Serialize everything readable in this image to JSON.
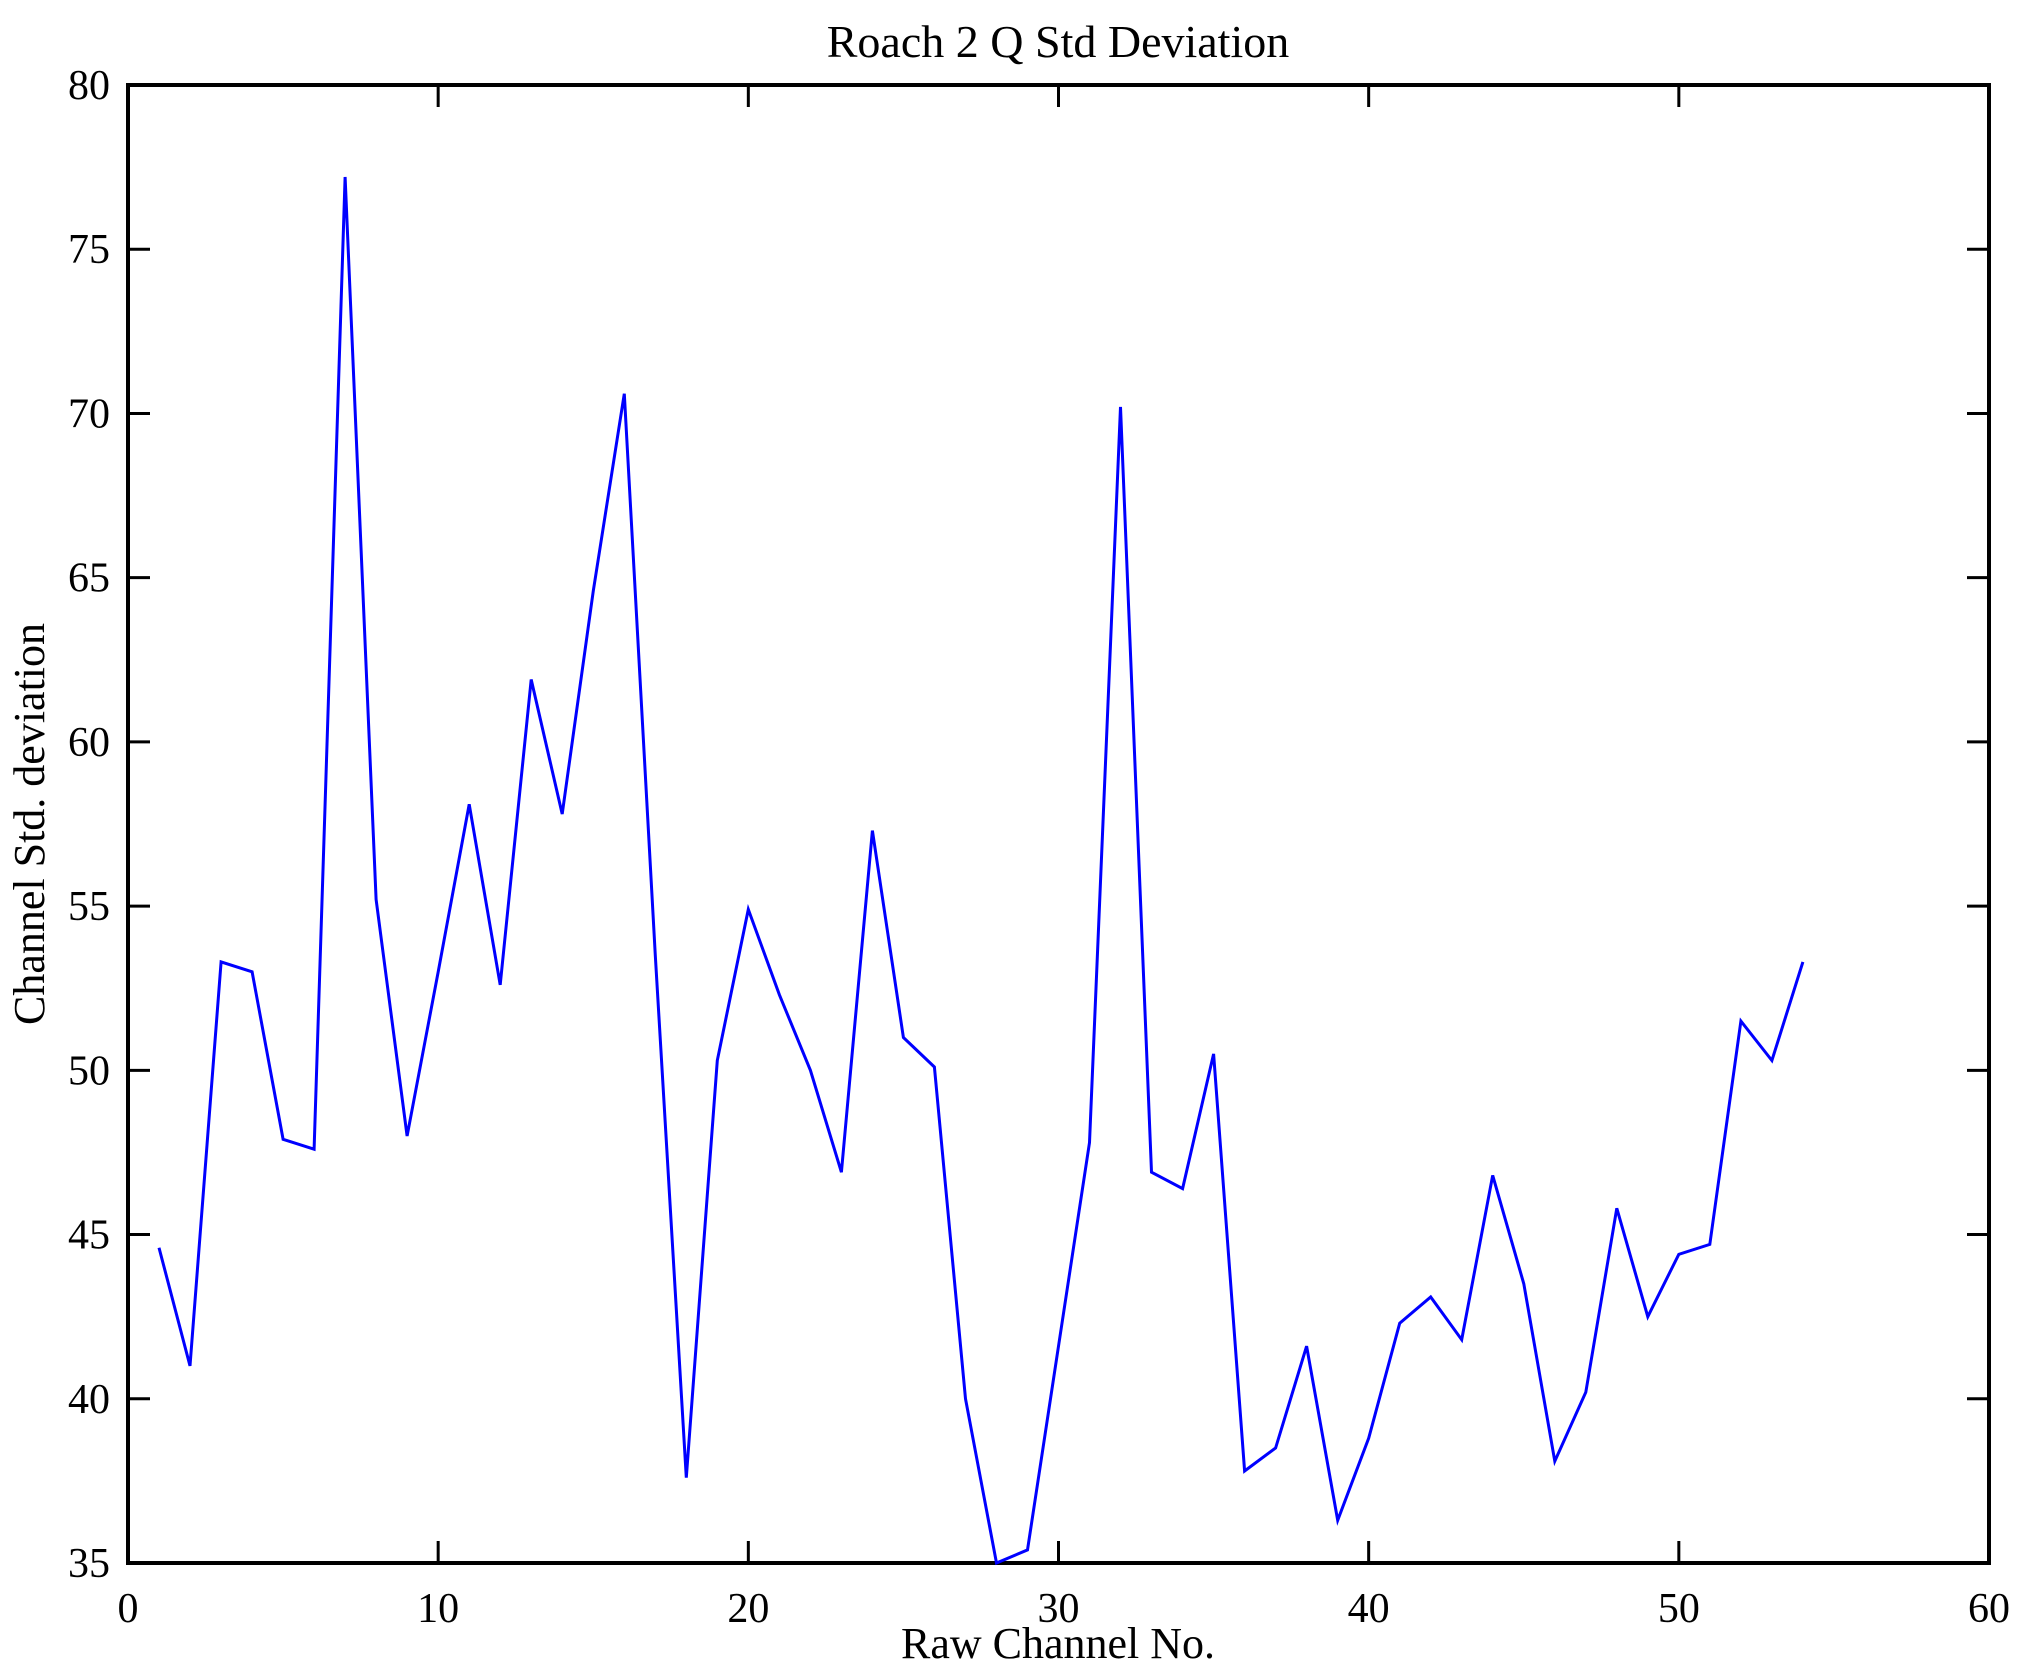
{
  "chart_data": {
    "type": "line",
    "title": "Roach 2 Q Std Deviation",
    "xlabel": "Raw Channel No.",
    "ylabel": "Channel Std. deviation",
    "xlim": [
      0,
      60
    ],
    "ylim": [
      35,
      80
    ],
    "x_ticks": [
      0,
      10,
      20,
      30,
      40,
      50,
      60
    ],
    "y_ticks": [
      35,
      40,
      45,
      50,
      55,
      60,
      65,
      70,
      75,
      80
    ],
    "grid": false,
    "legend": "none",
    "line_color": "#0000FF",
    "axis_color": "#000000",
    "x": [
      1,
      2,
      3,
      4,
      5,
      6,
      7,
      8,
      9,
      10,
      11,
      12,
      13,
      14,
      15,
      16,
      17,
      18,
      19,
      20,
      21,
      22,
      23,
      24,
      25,
      26,
      27,
      28,
      29,
      30,
      31,
      32,
      33,
      34,
      35,
      36,
      37,
      38,
      39,
      40,
      41,
      42,
      43,
      44,
      45,
      46,
      47,
      48,
      49,
      50,
      51,
      52,
      53,
      54
    ],
    "values": [
      44.6,
      41.0,
      53.3,
      53.0,
      47.9,
      47.6,
      77.2,
      55.2,
      48.0,
      53.0,
      58.1,
      52.6,
      61.9,
      57.8,
      64.6,
      70.6,
      53.5,
      37.6,
      50.3,
      54.9,
      52.3,
      50.0,
      46.9,
      57.3,
      51.0,
      50.1,
      40.0,
      35.0,
      35.4,
      41.6,
      47.8,
      70.2,
      46.9,
      46.4,
      50.5,
      37.8,
      38.5,
      41.6,
      36.3,
      38.8,
      42.3,
      43.1,
      41.8,
      46.8,
      43.5,
      38.1,
      40.2,
      45.8,
      42.5,
      44.4,
      44.7,
      51.5,
      50.3,
      53.3
    ]
  }
}
